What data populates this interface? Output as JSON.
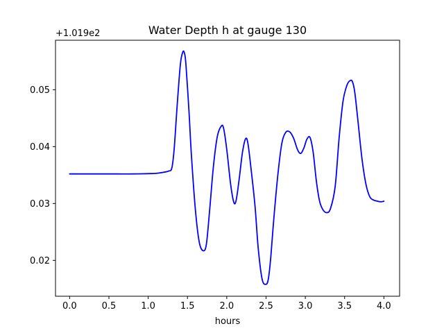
{
  "chart_data": {
    "type": "line",
    "title": "Water Depth h at gauge 130",
    "xlabel": "hours",
    "ylabel": "",
    "offset_label": "+1.019e2",
    "xlim": [
      -0.18,
      4.2
    ],
    "ylim": [
      0.0137,
      0.0587
    ],
    "x_ticks": [
      0.0,
      0.5,
      1.0,
      1.5,
      2.0,
      2.5,
      3.0,
      3.5,
      4.0
    ],
    "x_tick_labels": [
      "0.0",
      "0.5",
      "1.0",
      "1.5",
      "2.0",
      "2.5",
      "3.0",
      "3.5",
      "4.0"
    ],
    "y_ticks": [
      0.02,
      0.03,
      0.04,
      0.05
    ],
    "y_tick_labels": [
      "0.02",
      "0.03",
      "0.04",
      "0.05"
    ],
    "grid": false,
    "series": [
      {
        "color": "#0000ff",
        "x": [
          0.0,
          0.2,
          0.4,
          0.6,
          0.8,
          1.0,
          1.1,
          1.2,
          1.26,
          1.3,
          1.33,
          1.37,
          1.41,
          1.44,
          1.46,
          1.48,
          1.52,
          1.55,
          1.6,
          1.65,
          1.7,
          1.74,
          1.78,
          1.83,
          1.88,
          1.93,
          1.96,
          2.0,
          2.05,
          2.09,
          2.12,
          2.16,
          2.2,
          2.24,
          2.27,
          2.31,
          2.36,
          2.4,
          2.45,
          2.5,
          2.53,
          2.56,
          2.6,
          2.65,
          2.7,
          2.75,
          2.8,
          2.85,
          2.9,
          2.94,
          2.98,
          3.02,
          3.06,
          3.1,
          3.14,
          3.18,
          3.22,
          3.27,
          3.32,
          3.38,
          3.43,
          3.48,
          3.53,
          3.57,
          3.6,
          3.63,
          3.67,
          3.72,
          3.77,
          3.82,
          3.87,
          3.92,
          3.96,
          4.0
        ],
        "y": [
          0.0352,
          0.0352,
          0.0352,
          0.0352,
          0.0352,
          0.03525,
          0.0353,
          0.0355,
          0.0357,
          0.0362,
          0.0395,
          0.0475,
          0.0545,
          0.0566,
          0.0565,
          0.0545,
          0.046,
          0.0385,
          0.029,
          0.0232,
          0.0217,
          0.0228,
          0.0285,
          0.0365,
          0.0418,
          0.0436,
          0.0432,
          0.0395,
          0.0333,
          0.0302,
          0.0306,
          0.0345,
          0.039,
          0.0414,
          0.0405,
          0.036,
          0.0295,
          0.0222,
          0.0167,
          0.0158,
          0.0168,
          0.0205,
          0.0275,
          0.035,
          0.0405,
          0.0425,
          0.0426,
          0.0415,
          0.0395,
          0.0388,
          0.0397,
          0.0413,
          0.0416,
          0.039,
          0.034,
          0.0305,
          0.029,
          0.0284,
          0.0291,
          0.033,
          0.0415,
          0.048,
          0.0508,
          0.0516,
          0.0514,
          0.0495,
          0.0445,
          0.038,
          0.0335,
          0.0312,
          0.0306,
          0.0304,
          0.0303,
          0.0304
        ]
      }
    ]
  }
}
